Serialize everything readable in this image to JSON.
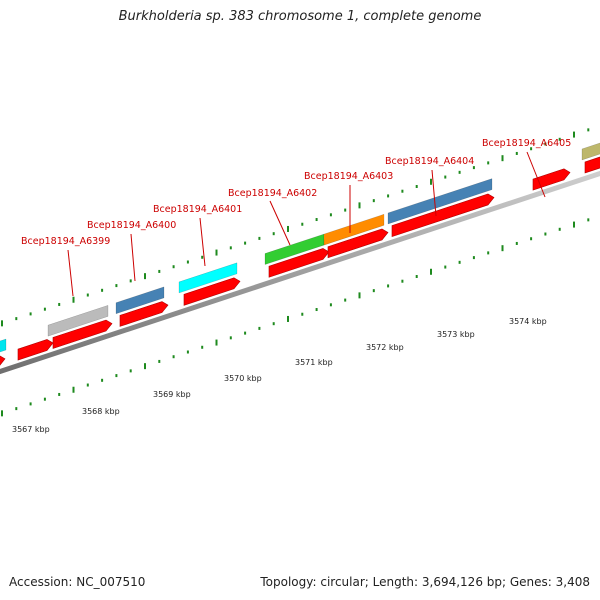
{
  "title": "Burkholderia sp. 383 chromosome 1, complete genome",
  "footer": {
    "accession": "Accession: NC_007510",
    "stats": "Topology: circular; Length: 3,694,126 bp; Genes: 3,408"
  },
  "scale_labels": [
    "3567 kbp",
    "3568 kbp",
    "3569 kbp",
    "3570 kbp",
    "3571 kbp",
    "3572 kbp",
    "3573 kbp",
    "3574 kbp"
  ],
  "gene_labels": [
    "Bcep18194_A6399",
    "Bcep18194_A6400",
    "Bcep18194_A6401",
    "Bcep18194_A6402",
    "Bcep18194_A6403",
    "Bcep18194_A6404",
    "Bcep18194_A6405"
  ],
  "colors": {
    "cds": "#ff0000",
    "label": "#cc0000",
    "tick": "#1e8a1e",
    "backbone": "#8c8c8c",
    "feature_colors": [
      "#00e5ee",
      "#bbbbbb",
      "#4682b4",
      "#00ffff",
      "#32cd32",
      "#ff8c00",
      "#4682b4",
      "#bdb76b"
    ]
  }
}
